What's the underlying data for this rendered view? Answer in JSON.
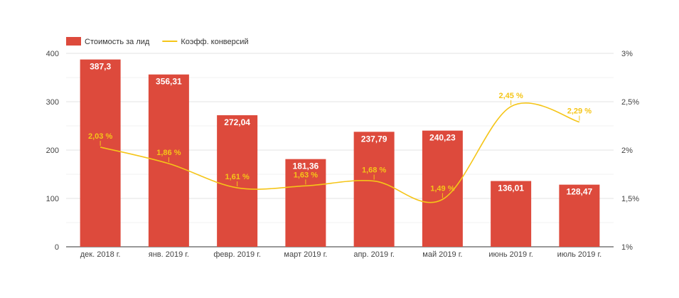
{
  "chart_data": {
    "type": "bar",
    "categories": [
      "дек. 2018 г.",
      "янв. 2019 г.",
      "февр. 2019 г.",
      "март 2019 г.",
      "апр. 2019 г.",
      "май 2019 г.",
      "июнь 2019 г.",
      "июль 2019 г."
    ],
    "series": [
      {
        "name": "Стоимость за лид",
        "type": "bar",
        "axis": "left",
        "color": "#dd4a3c",
        "values": [
          387.3,
          356.31,
          272.04,
          181.36,
          237.79,
          240.23,
          136.01,
          128.47
        ],
        "labels": [
          "387,3",
          "356,31",
          "272,04",
          "181,36",
          "237,79",
          "240,23",
          "136,01",
          "128,47"
        ]
      },
      {
        "name": "Коэфф. конверсий",
        "type": "line",
        "axis": "right",
        "color": "#f5c518",
        "values": [
          2.03,
          1.86,
          1.61,
          1.63,
          1.68,
          1.49,
          2.45,
          2.29
        ],
        "labels": [
          "2,03 %",
          "1,86 %",
          "1,61 %",
          "1,63 %",
          "1,68 %",
          "1,49 %",
          "2,45 %",
          "2,29 %"
        ]
      }
    ],
    "y_left": {
      "range": [
        0,
        400
      ],
      "ticks": [
        0,
        100,
        200,
        300,
        400
      ],
      "tick_labels": [
        "0",
        "100",
        "200",
        "300",
        "400"
      ]
    },
    "y_right": {
      "range": [
        1,
        3
      ],
      "ticks": [
        1,
        1.5,
        2,
        2.5,
        3
      ],
      "tick_labels": [
        "1%",
        "1,5%",
        "2%",
        "2,5%",
        "3%"
      ]
    },
    "grid": true,
    "legend_position": "top-left",
    "title": "",
    "xlabel": "",
    "ylabel": ""
  }
}
